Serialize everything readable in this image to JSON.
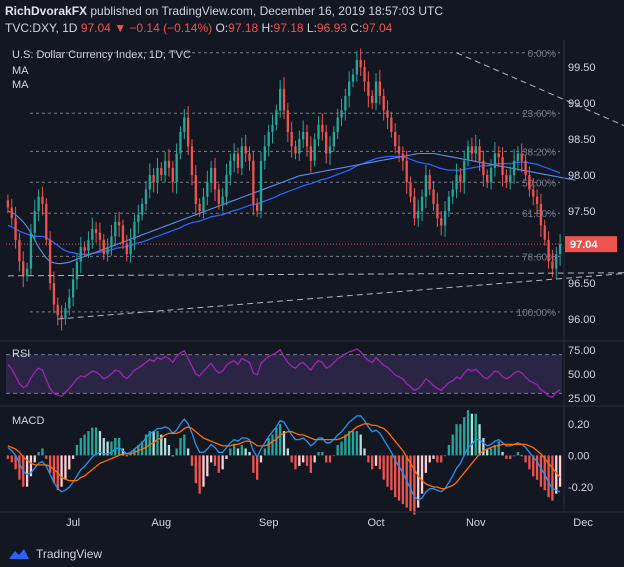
{
  "header": {
    "author": "RichDvorakFX",
    "published": "published on TradingView.com, December 16, 2019 18:57:03 UTC"
  },
  "symbol_line": {
    "symbol": "TVC:DXY, 1D",
    "last": "97.04",
    "change": "▼ −0.14 (−0.14%)",
    "o_label": "O:",
    "o": "97.18",
    "h_label": "H:",
    "h": "97.18",
    "l_label": "L:",
    "l": "96.93",
    "c_label": "C:",
    "c": "97.04"
  },
  "footer": {
    "brand": "TradingView"
  },
  "colors": {
    "up": "#26a69a",
    "down": "#ef5350",
    "ma_long": "#2962ff",
    "ma_short": "#2962ff",
    "rsi": "#9c27b0",
    "macd": "#2196f3",
    "signal": "#ff6d00",
    "bg": "#131722"
  },
  "chart_data": {
    "type": "candlestick",
    "title": "U.S. Dollar Currency Index, 1D, TVC",
    "legend": [
      "MA",
      "MA"
    ],
    "x_labels": [
      "Jul",
      "Aug",
      "Sep",
      "Oct",
      "Nov",
      "Dec"
    ],
    "y_ticks": [
      "99.50",
      "99.00",
      "98.50",
      "98.00",
      "97.50",
      "97.00",
      "96.50",
      "96.00"
    ],
    "ylim": [
      95.75,
      99.85
    ],
    "last_price_label": "97.04",
    "last_price": 97.04,
    "fibonacci": [
      {
        "label": "0.00%",
        "value": 99.7
      },
      {
        "label": "23.60%",
        "value": 98.86
      },
      {
        "label": "38.20%",
        "value": 98.33
      },
      {
        "label": "50.00%",
        "value": 97.9
      },
      {
        "label": "61.80%",
        "value": 97.47
      },
      {
        "label": "78.60%",
        "value": 96.87
      },
      {
        "label": "100.00%",
        "value": 96.1
      }
    ],
    "series": {
      "close": [
        97.55,
        97.4,
        97.1,
        96.8,
        96.6,
        96.7,
        97.2,
        97.5,
        97.7,
        97.6,
        97.1,
        96.5,
        96.2,
        96.05,
        96.0,
        96.15,
        96.3,
        96.55,
        96.8,
        97.0,
        96.95,
        97.1,
        97.25,
        97.2,
        97.1,
        96.9,
        97.0,
        97.15,
        97.35,
        97.3,
        97.05,
        96.9,
        97.1,
        97.35,
        97.45,
        97.6,
        97.8,
        98.0,
        97.9,
        98.1,
        98.0,
        98.2,
        98.1,
        97.9,
        98.3,
        98.6,
        98.8,
        98.4,
        98.0,
        97.6,
        97.5,
        97.7,
        97.9,
        98.1,
        97.8,
        97.6,
        97.7,
        98.0,
        98.2,
        98.3,
        98.1,
        98.4,
        98.3,
        98.2,
        97.6,
        97.5,
        98.2,
        98.4,
        98.6,
        98.7,
        98.9,
        99.2,
        98.9,
        98.6,
        98.4,
        98.3,
        98.5,
        98.6,
        98.4,
        98.2,
        98.5,
        98.7,
        98.6,
        98.3,
        98.4,
        98.6,
        98.8,
        98.9,
        99.1,
        99.3,
        99.4,
        99.6,
        99.5,
        99.3,
        99.1,
        99.0,
        99.3,
        99.1,
        98.9,
        98.8,
        98.6,
        98.4,
        98.3,
        98.2,
        97.9,
        97.7,
        97.4,
        97.5,
        97.7,
        98.0,
        97.8,
        97.6,
        97.4,
        97.3,
        97.5,
        97.7,
        97.8,
        98.0,
        97.9,
        98.2,
        98.4,
        98.3,
        98.4,
        98.2,
        98.0,
        97.9,
        98.1,
        98.3,
        98.25,
        98.0,
        97.9,
        98.0,
        98.2,
        98.3,
        98.2,
        98.0,
        97.8,
        97.7,
        97.6,
        97.3,
        97.1,
        96.8,
        96.7,
        96.9,
        97.04
      ],
      "ma_long": [
        97.3,
        97.28,
        97.25,
        97.22,
        97.2,
        97.18,
        97.16,
        97.15,
        97.15,
        97.15,
        97.13,
        97.1,
        97.06,
        97.02,
        96.98,
        96.95,
        96.93,
        96.92,
        96.91,
        96.9,
        96.9,
        96.9,
        96.91,
        96.92,
        96.93,
        96.94,
        96.95,
        96.96,
        96.98,
        96.99,
        97.0,
        97.01,
        97.02,
        97.04,
        97.06,
        97.07,
        97.09,
        97.11,
        97.13,
        97.15,
        97.17,
        97.19,
        97.21,
        97.23,
        97.25,
        97.27,
        97.3,
        97.32,
        97.34,
        97.35,
        97.36,
        97.38,
        97.4,
        97.42,
        97.43,
        97.44,
        97.45,
        97.47,
        97.49,
        97.51,
        97.52,
        97.54,
        97.56,
        97.58,
        97.59,
        97.6,
        97.62,
        97.64,
        97.66,
        97.68,
        97.7,
        97.73,
        97.75,
        97.77,
        97.79,
        97.81,
        97.83,
        97.85,
        97.87,
        97.88,
        97.9,
        97.92,
        97.94,
        97.95,
        97.97,
        97.99,
        98.01,
        98.03,
        98.05,
        98.07,
        98.1,
        98.13,
        98.15,
        98.17,
        98.19,
        98.21,
        98.23,
        98.24,
        98.25,
        98.26,
        98.26,
        98.26,
        98.26,
        98.25,
        98.24,
        98.22,
        98.2,
        98.18,
        98.17,
        98.16,
        98.15,
        98.13,
        98.11,
        98.09,
        98.08,
        98.07,
        98.07,
        98.07,
        98.07,
        98.08,
        98.09,
        98.1,
        98.11,
        98.12,
        98.13,
        98.13,
        98.14,
        98.15,
        98.16,
        98.16,
        98.16,
        98.16,
        98.17,
        98.18,
        98.18,
        98.18,
        98.17,
        98.16,
        98.15,
        98.13,
        98.11,
        98.09,
        98.07,
        98.05,
        98.03
      ],
      "ma_short": [
        97.5,
        97.48,
        97.45,
        97.4,
        97.35,
        97.28,
        97.2,
        97.1,
        97.0,
        96.92,
        96.85,
        96.8,
        96.78,
        96.77,
        96.77,
        96.78,
        96.79,
        96.81,
        96.83,
        96.85,
        96.87,
        96.89,
        96.91,
        96.93,
        96.95,
        96.97,
        96.99,
        97.01,
        97.03,
        97.05,
        97.07,
        97.09,
        97.11,
        97.13,
        97.15,
        97.17,
        97.19,
        97.21,
        97.23,
        97.25,
        97.27,
        97.29,
        97.31,
        97.33,
        97.35,
        97.37,
        97.39,
        97.41,
        97.43,
        97.45,
        97.47,
        97.49,
        97.51,
        97.53,
        97.55,
        97.57,
        97.59,
        97.61,
        97.63,
        97.65,
        97.67,
        97.69,
        97.71,
        97.73,
        97.75,
        97.77,
        97.79,
        97.81,
        97.83,
        97.85,
        97.87,
        97.89,
        97.91,
        97.93,
        97.95,
        97.97,
        97.99,
        98.0,
        98.01,
        98.02,
        98.03,
        98.04,
        98.05,
        98.06,
        98.07,
        98.08,
        98.09,
        98.1,
        98.11,
        98.12,
        98.13,
        98.14,
        98.15,
        98.16,
        98.17,
        98.18,
        98.19,
        98.2,
        98.21,
        98.22,
        98.23,
        98.24,
        98.25,
        98.26,
        98.27,
        98.28,
        98.29,
        98.3,
        98.3,
        98.3,
        98.3,
        98.3,
        98.29,
        98.28,
        98.27,
        98.26,
        98.25,
        98.24,
        98.23,
        98.22,
        98.21,
        98.2,
        98.19,
        98.18,
        98.17,
        98.16,
        98.15,
        98.14,
        98.13,
        98.12,
        98.11,
        98.1,
        98.09,
        98.08,
        98.07,
        98.06,
        98.05,
        98.04,
        98.03,
        98.02,
        98.01,
        98.0,
        97.99,
        97.98,
        97.97,
        97.96,
        97.95,
        97.94,
        97.93
      ],
      "rsi": [
        60,
        55,
        48,
        40,
        36,
        38,
        46,
        52,
        56,
        54,
        44,
        35,
        30,
        28,
        27,
        31,
        35,
        40,
        45,
        48,
        47,
        50,
        53,
        52,
        49,
        45,
        47,
        50,
        54,
        53,
        48,
        45,
        49,
        54,
        56,
        59,
        62,
        65,
        63,
        67,
        65,
        68,
        66,
        62,
        68,
        72,
        74,
        66,
        58,
        50,
        48,
        53,
        57,
        61,
        55,
        51,
        53,
        59,
        62,
        64,
        60,
        66,
        64,
        62,
        51,
        49,
        61,
        65,
        68,
        70,
        72,
        75,
        68,
        62,
        58,
        56,
        60,
        62,
        58,
        54,
        60,
        64,
        62,
        56,
        58,
        62,
        66,
        68,
        71,
        73,
        74,
        76,
        73,
        68,
        64,
        62,
        67,
        63,
        59,
        57,
        53,
        49,
        47,
        45,
        40,
        37,
        33,
        35,
        39,
        45,
        42,
        38,
        35,
        33,
        37,
        41,
        43,
        47,
        45,
        51,
        55,
        53,
        55,
        51,
        47,
        45,
        49,
        53,
        52,
        47,
        45,
        47,
        51,
        53,
        51,
        47,
        43,
        41,
        39,
        34,
        31,
        27,
        26,
        31,
        34
      ],
      "macd": [
        0.05,
        0.03,
        0.0,
        -0.05,
        -0.1,
        -0.12,
        -0.11,
        -0.08,
        -0.05,
        -0.04,
        -0.07,
        -0.12,
        -0.17,
        -0.21,
        -0.23,
        -0.22,
        -0.2,
        -0.17,
        -0.13,
        -0.09,
        -0.07,
        -0.04,
        -0.01,
        0.01,
        0.02,
        0.01,
        0.01,
        0.02,
        0.04,
        0.05,
        0.03,
        0.01,
        0.02,
        0.04,
        0.06,
        0.08,
        0.11,
        0.14,
        0.15,
        0.17,
        0.17,
        0.18,
        0.17,
        0.14,
        0.16,
        0.2,
        0.23,
        0.2,
        0.14,
        0.07,
        0.02,
        0.02,
        0.04,
        0.07,
        0.05,
        0.02,
        0.02,
        0.05,
        0.08,
        0.1,
        0.09,
        0.11,
        0.11,
        0.1,
        0.03,
        -0.01,
        0.04,
        0.08,
        0.12,
        0.15,
        0.18,
        0.22,
        0.21,
        0.17,
        0.13,
        0.1,
        0.1,
        0.11,
        0.09,
        0.06,
        0.08,
        0.11,
        0.11,
        0.08,
        0.08,
        0.1,
        0.13,
        0.15,
        0.18,
        0.21,
        0.23,
        0.25,
        0.25,
        0.22,
        0.18,
        0.15,
        0.16,
        0.14,
        0.1,
        0.06,
        0.02,
        -0.03,
        -0.07,
        -0.11,
        -0.16,
        -0.21,
        -0.26,
        -0.28,
        -0.27,
        -0.23,
        -0.21,
        -0.21,
        -0.22,
        -0.23,
        -0.21,
        -0.17,
        -0.13,
        -0.08,
        -0.05,
        0.0,
        0.05,
        0.07,
        0.1,
        0.1,
        0.08,
        0.06,
        0.07,
        0.09,
        0.1,
        0.08,
        0.06,
        0.06,
        0.07,
        0.08,
        0.07,
        0.05,
        0.02,
        -0.01,
        -0.04,
        -0.08,
        -0.12,
        -0.17,
        -0.21,
        -0.22,
        -0.23
      ],
      "signal": [
        0.06,
        0.05,
        0.04,
        0.02,
        -0.01,
        -0.03,
        -0.05,
        -0.06,
        -0.06,
        -0.06,
        -0.06,
        -0.07,
        -0.09,
        -0.11,
        -0.14,
        -0.15,
        -0.16,
        -0.16,
        -0.16,
        -0.14,
        -0.13,
        -0.11,
        -0.09,
        -0.07,
        -0.05,
        -0.04,
        -0.03,
        -0.02,
        -0.01,
        0.0,
        0.01,
        0.01,
        0.01,
        0.02,
        0.03,
        0.04,
        0.05,
        0.07,
        0.08,
        0.1,
        0.11,
        0.13,
        0.14,
        0.14,
        0.14,
        0.15,
        0.17,
        0.18,
        0.17,
        0.15,
        0.13,
        0.11,
        0.1,
        0.09,
        0.08,
        0.07,
        0.06,
        0.06,
        0.06,
        0.07,
        0.07,
        0.08,
        0.09,
        0.09,
        0.08,
        0.06,
        0.06,
        0.06,
        0.07,
        0.09,
        0.1,
        0.13,
        0.14,
        0.15,
        0.15,
        0.14,
        0.13,
        0.13,
        0.12,
        0.11,
        0.1,
        0.1,
        0.1,
        0.1,
        0.1,
        0.1,
        0.1,
        0.11,
        0.12,
        0.14,
        0.16,
        0.18,
        0.19,
        0.2,
        0.2,
        0.19,
        0.19,
        0.18,
        0.17,
        0.15,
        0.12,
        0.09,
        0.06,
        0.03,
        -0.01,
        -0.05,
        -0.09,
        -0.13,
        -0.16,
        -0.18,
        -0.19,
        -0.2,
        -0.2,
        -0.21,
        -0.21,
        -0.2,
        -0.19,
        -0.17,
        -0.14,
        -0.11,
        -0.08,
        -0.05,
        -0.02,
        0.01,
        0.03,
        0.04,
        0.05,
        0.06,
        0.06,
        0.07,
        0.07,
        0.07,
        0.07,
        0.07,
        0.07,
        0.07,
        0.06,
        0.05,
        0.03,
        0.01,
        -0.02,
        -0.05,
        -0.08,
        -0.11,
        -0.14
      ]
    },
    "trendlines": [
      {
        "name": "upper-trendline",
        "from": [
          117,
          99.7
        ],
        "to": [
          183,
          98.05
        ]
      },
      {
        "name": "lower-trendline",
        "from": [
          13,
          96.0
        ],
        "to": [
          183,
          96.75
        ]
      },
      {
        "name": "support-trendline",
        "from": [
          0,
          96.6
        ],
        "to": [
          183,
          96.65
        ]
      }
    ],
    "rsi_panel": {
      "label": "RSI",
      "ticks": [
        "75.00",
        "50.00",
        "25.00"
      ],
      "ylim": [
        20,
        80
      ],
      "bands": [
        70,
        30
      ]
    },
    "macd_panel": {
      "label": "MACD",
      "ticks": [
        "0.20",
        "0.00",
        "-0.20"
      ],
      "ylim": [
        -0.32,
        0.3
      ]
    }
  }
}
